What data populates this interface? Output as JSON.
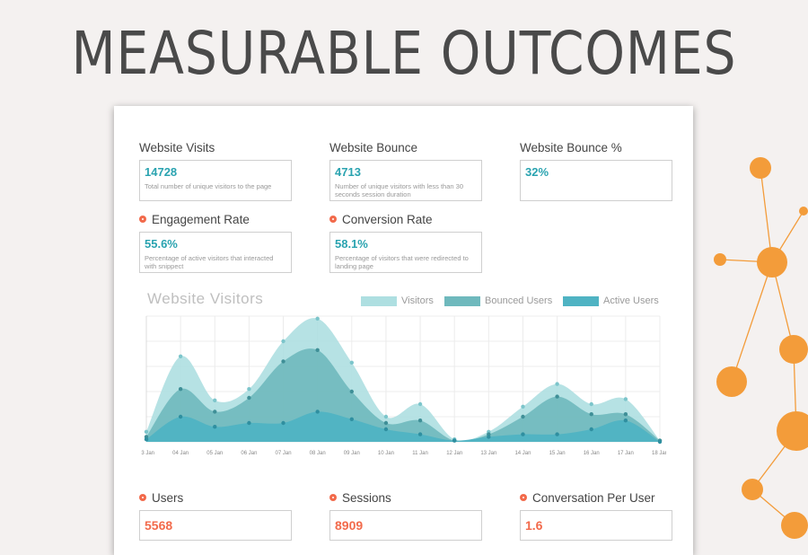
{
  "headline": "MEASURABLE OUTCOMES",
  "metrics": [
    {
      "label": "Website Visits",
      "value": "14728",
      "desc": "Total number of unique visitors to the page"
    },
    {
      "label": "Website Bounce",
      "value": "4713",
      "desc": "Number of unique visitors with less than 30 seconds session duration"
    },
    {
      "label": "Website Bounce %",
      "value": "32%",
      "desc": ""
    },
    {
      "label": "Engagement Rate",
      "value": "55.6%",
      "desc": "Percentage of active visitors that interacted with snippect"
    },
    {
      "label": "Conversion Rate",
      "value": "58.1%",
      "desc": "Percentage of visitors that were redirected to landing page"
    },
    {
      "label": "Users",
      "value": "5568"
    },
    {
      "label": "Sessions",
      "value": "8909"
    },
    {
      "label": "Conversation Per User",
      "value": "1.6"
    }
  ],
  "colors": {
    "teal_light": "#aedfe1",
    "teal_mid": "#6fb9bd",
    "teal_dark": "#4fb3c3",
    "accent": "#f26a4b",
    "decor": "#f39c3a"
  },
  "chart_data": {
    "type": "area",
    "title": "Website Visitors",
    "x": [
      "03 Jan",
      "04 Jan",
      "05 Jan",
      "06 Jan",
      "07 Jan",
      "08 Jan",
      "09 Jan",
      "10 Jan",
      "11 Jan",
      "12 Jan",
      "13 Jan",
      "14 Jan",
      "15 Jan",
      "16 Jan",
      "17 Jan",
      "18 Jan"
    ],
    "ylim": [
      0,
      100
    ],
    "grid": true,
    "legend_position": "top-right",
    "series": [
      {
        "name": "Visitors",
        "color": "#aedfe1",
        "values": [
          8,
          68,
          33,
          42,
          80,
          98,
          63,
          20,
          30,
          2,
          8,
          28,
          46,
          30,
          34,
          1
        ]
      },
      {
        "name": "Bounced Users",
        "color": "#6fb9bd",
        "values": [
          4,
          42,
          24,
          35,
          64,
          73,
          40,
          15,
          17,
          1,
          6,
          20,
          36,
          22,
          22,
          1
        ]
      },
      {
        "name": "Active Users",
        "color": "#4fb3c3",
        "values": [
          2,
          20,
          12,
          15,
          15,
          24,
          18,
          10,
          6,
          1,
          4,
          6,
          6,
          10,
          17,
          0
        ]
      }
    ]
  }
}
